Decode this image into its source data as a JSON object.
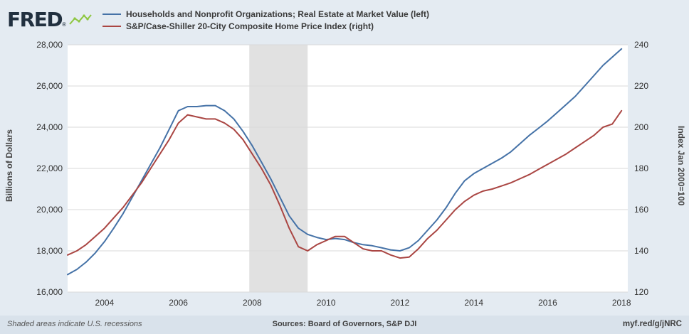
{
  "header": {
    "logo_text": "FRED",
    "registered_mark": "®"
  },
  "footer": {
    "recession_note": "Shaded areas indicate U.S. recessions",
    "sources": "Sources: Board of Governors, S&P DJI",
    "link": "myf.red/g/jNRC"
  },
  "colors": {
    "background": "#e4ebf2",
    "plot_background": "#ffffff",
    "grid": "#d9d9d9",
    "recession_band": "#e1e1e1",
    "logo_green": "#8dc63f"
  },
  "chart_data": {
    "type": "line",
    "title": "",
    "y_left_label": "Billions of Dollars",
    "y_right_label": "Index Jan 2000=100",
    "x_range": [
      2003,
      2018.17
    ],
    "y_left_range": [
      16000,
      28000
    ],
    "y_right_range": [
      120,
      240
    ],
    "x_ticks": [
      2004,
      2006,
      2008,
      2010,
      2012,
      2014,
      2016,
      2018
    ],
    "y_left_ticks": [
      16000,
      18000,
      20000,
      22000,
      24000,
      26000,
      28000
    ],
    "y_right_ticks": [
      120,
      140,
      160,
      180,
      200,
      220,
      240
    ],
    "grid": true,
    "legend_position": "top",
    "recession_bands": [
      [
        2007.92,
        2009.5
      ]
    ],
    "x": [
      2003,
      2003.25,
      2003.5,
      2003.75,
      2004,
      2004.25,
      2004.5,
      2004.75,
      2005,
      2005.25,
      2005.5,
      2005.75,
      2006,
      2006.25,
      2006.5,
      2006.75,
      2007,
      2007.25,
      2007.5,
      2007.75,
      2008,
      2008.25,
      2008.5,
      2008.75,
      2009,
      2009.25,
      2009.5,
      2009.75,
      2010,
      2010.25,
      2010.5,
      2010.75,
      2011,
      2011.25,
      2011.5,
      2011.75,
      2012,
      2012.25,
      2012.5,
      2012.75,
      2013,
      2013.25,
      2013.5,
      2013.75,
      2014,
      2014.25,
      2014.5,
      2014.75,
      2015,
      2015.25,
      2015.5,
      2015.75,
      2016,
      2016.25,
      2016.5,
      2016.75,
      2017,
      2017.25,
      2017.5,
      2017.75,
      2018
    ],
    "series": [
      {
        "name": "Households and Nonprofit Organizations; Real Estate at Market Value (left)",
        "axis": "left",
        "color": "#4572a7",
        "values": [
          16850,
          17100,
          17450,
          17900,
          18450,
          19100,
          19800,
          20600,
          21400,
          22200,
          23000,
          23900,
          24800,
          25000,
          25000,
          25050,
          25050,
          24800,
          24400,
          23800,
          23100,
          22300,
          21500,
          20600,
          19700,
          19100,
          18800,
          18650,
          18550,
          18600,
          18550,
          18400,
          18300,
          18250,
          18150,
          18050,
          18000,
          18150,
          18500,
          19000,
          19500,
          20100,
          20800,
          21400,
          21750,
          22000,
          22250,
          22500,
          22800,
          23200,
          23600,
          23950,
          24300,
          24700,
          25100,
          25500,
          26000,
          26500,
          27000,
          27400,
          27800
        ]
      },
      {
        "name": "S&P/Case-Shiller 20-City Composite Home Price Index (right)",
        "axis": "right",
        "color": "#aa4643",
        "values": [
          138,
          140,
          143,
          147,
          151,
          156,
          161,
          167,
          173,
          180,
          187,
          194,
          202,
          206,
          205,
          204,
          204,
          202,
          199,
          194,
          187,
          180,
          172,
          162,
          151,
          142,
          140,
          143,
          145,
          147,
          147,
          144,
          141,
          140,
          140,
          138,
          136.5,
          137,
          141,
          146,
          150,
          155,
          160,
          164,
          167,
          169,
          170,
          171.5,
          173,
          175,
          177,
          179.5,
          182,
          184.5,
          187,
          190,
          193,
          196,
          200,
          201.5,
          208
        ]
      }
    ]
  }
}
